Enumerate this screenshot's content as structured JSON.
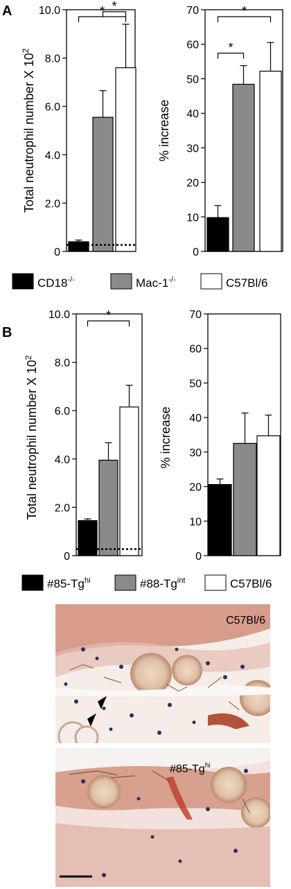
{
  "panels": [
    {
      "label": "A",
      "legend": [
        {
          "name": "CD18",
          "sup": "-/-",
          "color": "#000000"
        },
        {
          "name": "Mac-1",
          "sup": "-/-",
          "color": "#8a8a8a"
        },
        {
          "name": "C57Bl/6",
          "sup": "",
          "color": "#ffffff"
        }
      ]
    },
    {
      "label": "B",
      "legend": [
        {
          "name": "#85-Tg",
          "sup": "hi",
          "color": "#000000"
        },
        {
          "name": "#88-Tg",
          "sup": "int",
          "color": "#8a8a8a"
        },
        {
          "name": "C57Bl/6",
          "sup": "",
          "color": "#ffffff"
        }
      ]
    }
  ],
  "chart_data": [
    {
      "type": "bar",
      "panel": "A",
      "ylabel": "Total neutrophil number X 10",
      "ylabel_sup": "2",
      "ylim": [
        0,
        10
      ],
      "yticks": [
        "0",
        "2.0",
        "4.0",
        "6.0",
        "8.0",
        "10.0"
      ],
      "categories": [
        "CD18-/-",
        "Mac-1-/-",
        "C57Bl/6"
      ],
      "values": [
        0.4,
        5.55,
        7.6
      ],
      "errors": [
        0.07,
        1.1,
        1.8
      ],
      "baseline": 0.27,
      "significance": [
        {
          "from": 1,
          "to": 2,
          "label": "*"
        },
        {
          "from": 0,
          "to": 2,
          "label": "*"
        }
      ]
    },
    {
      "type": "bar",
      "panel": "A",
      "ylabel": "% increase",
      "ylim": [
        0,
        70
      ],
      "yticks": [
        "0",
        "10",
        "20",
        "30",
        "40",
        "50",
        "60",
        "70"
      ],
      "categories": [
        "CD18-/-",
        "Mac-1-/-",
        "C57Bl/6"
      ],
      "values": [
        9.8,
        48.4,
        52.2
      ],
      "errors": [
        3.5,
        5.4,
        8.3
      ],
      "significance": [
        {
          "from": 0,
          "to": 1,
          "label": "*"
        },
        {
          "from": 0,
          "to": 2,
          "label": "*"
        }
      ]
    },
    {
      "type": "bar",
      "panel": "B",
      "ylabel": "Total neutrophil number X 10",
      "ylabel_sup": "2",
      "ylim": [
        0,
        10
      ],
      "yticks": [
        "0",
        "2.0",
        "4.0",
        "6.0",
        "8.0",
        "10.0"
      ],
      "categories": [
        "#85-Tghi",
        "#88-Tgint",
        "C57Bl/6"
      ],
      "values": [
        1.45,
        3.95,
        6.15
      ],
      "errors": [
        0.07,
        0.72,
        0.9
      ],
      "baseline": 0.27,
      "significance": [
        {
          "from": 0,
          "to": 2,
          "label": "*"
        }
      ]
    },
    {
      "type": "bar",
      "panel": "B",
      "ylabel": "% increase",
      "ylim": [
        0,
        70
      ],
      "yticks": [
        "0",
        "10",
        "20",
        "30",
        "40",
        "50",
        "60",
        "70"
      ],
      "categories": [
        "#85-Tghi",
        "#88-Tgint",
        "C57Bl/6"
      ],
      "values": [
        20.6,
        32.5,
        34.7
      ],
      "errors": [
        1.6,
        8.8,
        6.0
      ],
      "significance": []
    }
  ],
  "micrographs": [
    {
      "label": "C57Bl/6",
      "label_sup": ""
    },
    {
      "label": "#85-Tg",
      "label_sup": "hi"
    }
  ]
}
